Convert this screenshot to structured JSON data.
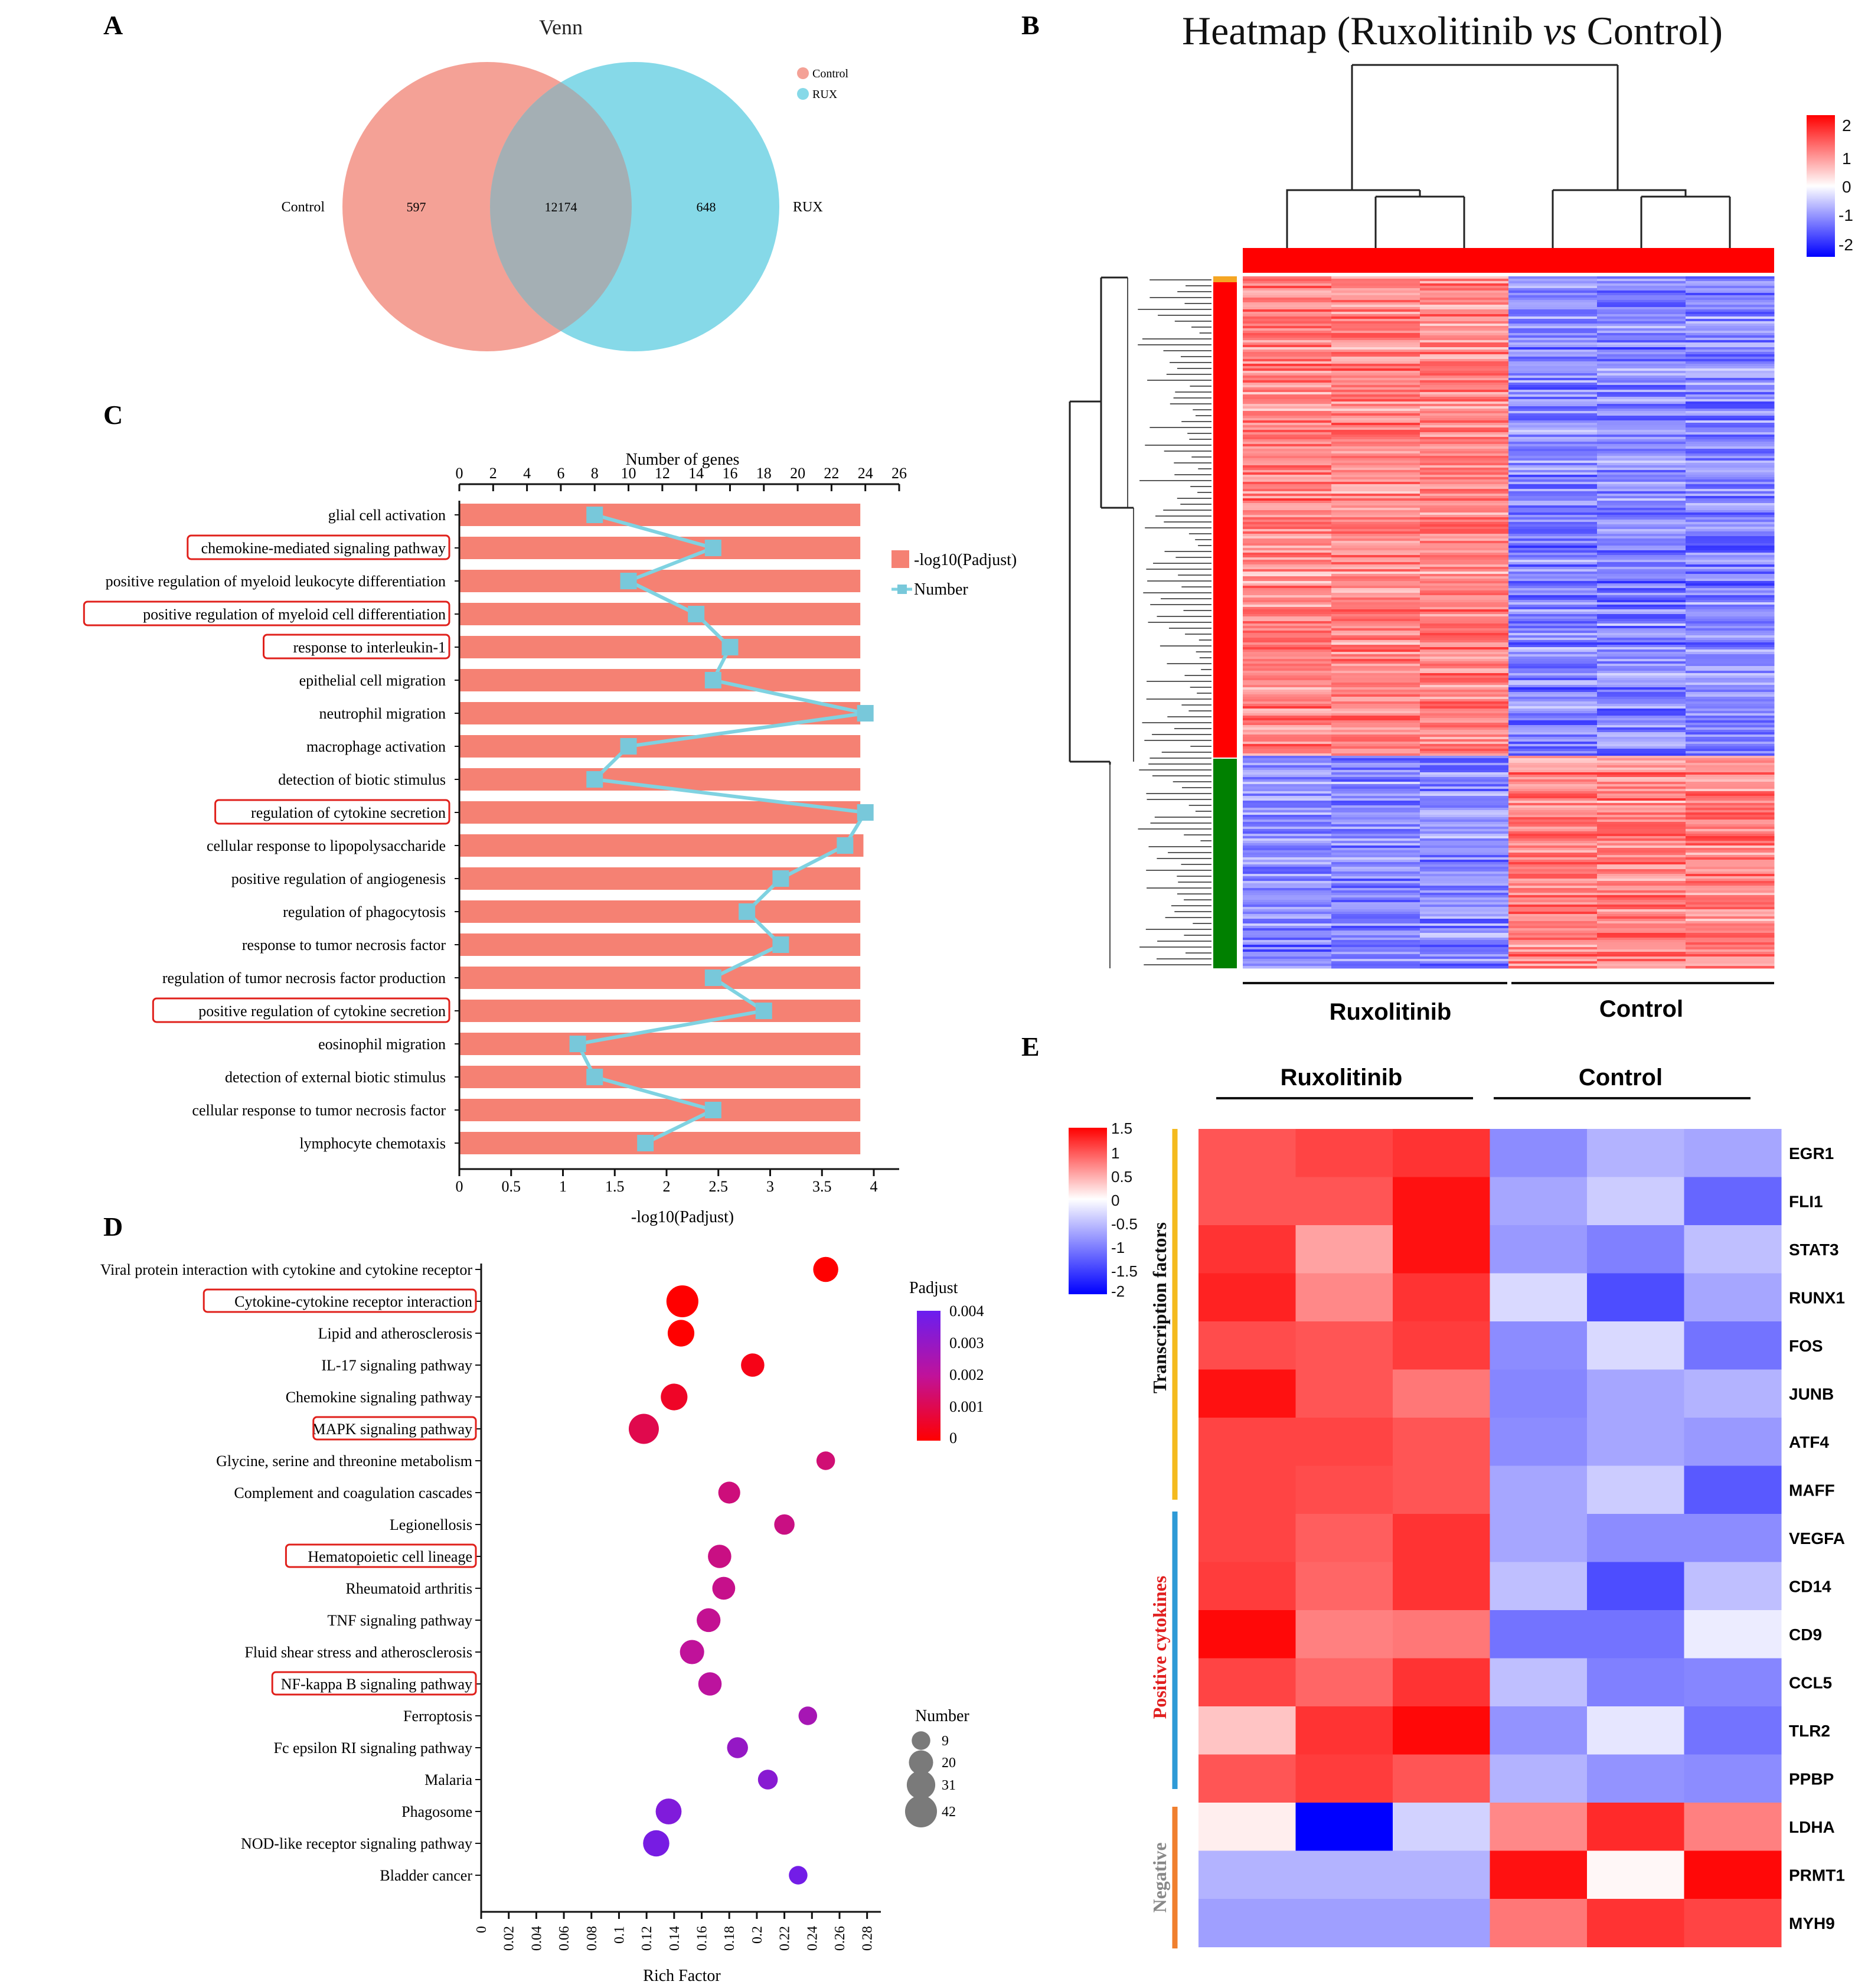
{
  "panel_labels": {
    "a": "A",
    "b": "B",
    "c": "C",
    "d": "D",
    "e": "E"
  },
  "colors": {
    "control": "#F4A196",
    "rux": "#86D9E8",
    "overlap": "#A4AFB4",
    "bar": "#F58173",
    "line": "#7FD2E1",
    "marker": "#78C8DA",
    "highlight": "#E0201B",
    "heat_high": "#FF0000",
    "heat_mid": "#FFFFFF",
    "heat_low": "#0000FF",
    "cluster_up": "#FF0000",
    "cluster_down": "#008000",
    "tf_bracket": "#F4BA1E",
    "pos_bracket": "#2E9AD6",
    "neg_bracket": "#F07F2E",
    "pos_label": "#E01E1E",
    "neg_label": "#888888"
  },
  "chart_data": [
    {
      "id": "venn",
      "type": "venn",
      "title": "Venn",
      "sets": [
        {
          "name": "Control",
          "label": "Control",
          "unique": 597
        },
        {
          "name": "RUX",
          "label": "RUX",
          "unique": 648
        }
      ],
      "intersection": 12174,
      "legend": [
        "Control",
        "RUX"
      ]
    },
    {
      "id": "heatmap_de",
      "type": "heatmap",
      "title_prefix": "Heatmap (Ruxolitinib ",
      "title_vs": "vs",
      "title_suffix": " Control)",
      "groups": [
        "Ruxolitinib",
        "Control"
      ],
      "samples_per_group": 3,
      "clusters": [
        {
          "name": "up in Ruxolitinib",
          "color": "#FF0000",
          "share": 0.69
        },
        {
          "name": "down in Ruxolitinib",
          "color": "#008000",
          "share": 0.31
        }
      ],
      "colorbar_ticks": [
        "2",
        "1",
        "0",
        "-1",
        "-2"
      ],
      "colorbar_range": [
        -2,
        2
      ]
    },
    {
      "id": "go_enrichment",
      "type": "bar",
      "top_axis_label": "Number of genes",
      "top_axis_ticks": [
        "0",
        "2",
        "4",
        "6",
        "8",
        "10",
        "12",
        "14",
        "16",
        "18",
        "20",
        "22",
        "24",
        "26"
      ],
      "top_axis_range": [
        0,
        26
      ],
      "bottom_axis_label": "-log10(Padjust)",
      "bottom_axis_ticks": [
        "0",
        "0.5",
        "1",
        "1.5",
        "2",
        "2.5",
        "3",
        "3.5",
        "4"
      ],
      "bottom_axis_range": [
        0,
        4
      ],
      "legend": [
        "-log10(Padjust)",
        "Number"
      ],
      "terms": [
        {
          "name": "glial cell activation",
          "padj": 3.87,
          "number": 8,
          "highlight": false
        },
        {
          "name": "chemokine-mediated signaling pathway",
          "padj": 3.87,
          "number": 15,
          "highlight": true
        },
        {
          "name": "positive regulation of myeloid leukocyte differentiation",
          "padj": 3.87,
          "number": 10,
          "highlight": false
        },
        {
          "name": "positive regulation of myeloid cell differentiation",
          "padj": 3.87,
          "number": 14,
          "highlight": true
        },
        {
          "name": "response to interleukin-1",
          "padj": 3.87,
          "number": 16,
          "highlight": true
        },
        {
          "name": "epithelial cell migration",
          "padj": 3.87,
          "number": 15,
          "highlight": false
        },
        {
          "name": "neutrophil migration",
          "padj": 3.87,
          "number": 24,
          "highlight": false
        },
        {
          "name": "macrophage activation",
          "padj": 3.87,
          "number": 10,
          "highlight": false
        },
        {
          "name": "detection of biotic stimulus",
          "padj": 3.87,
          "number": 8,
          "highlight": false
        },
        {
          "name": "regulation of cytokine secretion",
          "padj": 3.87,
          "number": 24,
          "highlight": true
        },
        {
          "name": "cellular response to lipopolysaccharide",
          "padj": 3.9,
          "number": 22.8,
          "highlight": false
        },
        {
          "name": "positive regulation of angiogenesis",
          "padj": 3.87,
          "number": 19,
          "highlight": false
        },
        {
          "name": "regulation of phagocytosis",
          "padj": 3.87,
          "number": 17,
          "highlight": false
        },
        {
          "name": "response to tumor necrosis factor",
          "padj": 3.87,
          "number": 19,
          "highlight": false
        },
        {
          "name": "regulation of tumor necrosis factor production",
          "padj": 3.87,
          "number": 15,
          "highlight": false
        },
        {
          "name": "positive regulation of cytokine secretion",
          "padj": 3.87,
          "number": 18,
          "highlight": true
        },
        {
          "name": "eosinophil migration",
          "padj": 3.87,
          "number": 7,
          "highlight": false
        },
        {
          "name": "detection of external biotic stimulus",
          "padj": 3.87,
          "number": 8,
          "highlight": false
        },
        {
          "name": "cellular response to tumor necrosis factor",
          "padj": 3.87,
          "number": 15,
          "highlight": false
        },
        {
          "name": "lymphocyte chemotaxis",
          "padj": 3.87,
          "number": 11,
          "highlight": false
        }
      ]
    },
    {
      "id": "kegg_enrichment",
      "type": "scatter",
      "xlabel": "Rich Factor",
      "x_ticks": [
        "0",
        "0.02",
        "0.04",
        "0.06",
        "0.08",
        "0.1",
        "0.12",
        "0.14",
        "0.16",
        "0.18",
        "0.2",
        "0.22",
        "0.24",
        "0.26",
        "0.28"
      ],
      "xlim": [
        0,
        0.29
      ],
      "color_legend_title": "Padjust",
      "color_ticks": [
        "0.004",
        "0.003",
        "0.002",
        "0.001",
        "0"
      ],
      "color_range": [
        0,
        0.004
      ],
      "size_legend_title": "Number",
      "size_ticks": [
        "9",
        "20",
        "31",
        "42"
      ],
      "pathways": [
        {
          "name": "Viral protein interaction with cytokine and cytokine receptor",
          "rich": 0.25,
          "number": 22,
          "padj": 0.0,
          "highlight": false
        },
        {
          "name": "Cytokine-cytokine receptor interaction",
          "rich": 0.146,
          "number": 42,
          "padj": 0.0,
          "highlight": true
        },
        {
          "name": "Lipid and atherosclerosis",
          "rich": 0.145,
          "number": 26,
          "padj": 0.0,
          "highlight": false
        },
        {
          "name": "IL-17 signaling pathway",
          "rich": 0.197,
          "number": 18,
          "padj": 0.0003,
          "highlight": false
        },
        {
          "name": "Chemokine signaling pathway",
          "rich": 0.14,
          "number": 26,
          "padj": 0.0005,
          "highlight": false
        },
        {
          "name": "MAPK signaling pathway",
          "rich": 0.118,
          "number": 36,
          "padj": 0.001,
          "highlight": true
        },
        {
          "name": "Glycine, serine and threonine metabolism",
          "rich": 0.25,
          "number": 9,
          "padj": 0.0015,
          "highlight": false
        },
        {
          "name": "Complement and coagulation cascades",
          "rich": 0.18,
          "number": 15,
          "padj": 0.0016,
          "highlight": false
        },
        {
          "name": "Legionellosis",
          "rich": 0.22,
          "number": 12,
          "padj": 0.0017,
          "highlight": false
        },
        {
          "name": "Hematopoietic cell lineage",
          "rich": 0.173,
          "number": 18,
          "padj": 0.0017,
          "highlight": true
        },
        {
          "name": "Rheumatoid arthritis",
          "rich": 0.176,
          "number": 17,
          "padj": 0.0018,
          "highlight": false
        },
        {
          "name": "TNF signaling pathway",
          "rich": 0.165,
          "number": 19,
          "padj": 0.0019,
          "highlight": false
        },
        {
          "name": "Fluid shear stress and atherosclerosis",
          "rich": 0.153,
          "number": 20,
          "padj": 0.002,
          "highlight": false
        },
        {
          "name": "NF-kappa B signaling pathway",
          "rich": 0.166,
          "number": 18,
          "padj": 0.0021,
          "highlight": true
        },
        {
          "name": "Ferroptosis",
          "rich": 0.237,
          "number": 9,
          "padj": 0.0026,
          "highlight": false
        },
        {
          "name": "Fc epsilon RI signaling pathway",
          "rich": 0.186,
          "number": 13,
          "padj": 0.003,
          "highlight": false
        },
        {
          "name": "Malaria",
          "rich": 0.208,
          "number": 11,
          "padj": 0.0033,
          "highlight": false
        },
        {
          "name": "Phagosome",
          "rich": 0.136,
          "number": 24,
          "padj": 0.0035,
          "highlight": false
        },
        {
          "name": "NOD-like receptor signaling pathway",
          "rich": 0.127,
          "number": 25,
          "padj": 0.0037,
          "highlight": false
        },
        {
          "name": "Bladder cancer",
          "rich": 0.23,
          "number": 9,
          "padj": 0.0038,
          "highlight": false
        }
      ]
    },
    {
      "id": "gene_heatmap",
      "type": "heatmap",
      "columns": [
        "Ruxolitinib",
        "Control"
      ],
      "samples_per_group": 3,
      "colorbar_ticks": [
        "1.5",
        "1",
        "0.5",
        "0",
        "-0.5",
        "-1",
        "-1.5",
        "-2"
      ],
      "colorbar_range": [
        -2,
        1.5
      ],
      "row_groups": [
        {
          "name": "Transcription factors",
          "start": 0,
          "end": 7
        },
        {
          "name": "Positive cytokines",
          "start": 8,
          "end": 13
        },
        {
          "name": "Negative",
          "start": 14,
          "end": 16
        }
      ],
      "genes": [
        "EGR1",
        "FLI1",
        "STAT3",
        "RUNX1",
        "FOS",
        "JUNB",
        "ATF4",
        "MAFF",
        "VEGFA",
        "CD14",
        "CD9",
        "CCL5",
        "TLR2",
        "PPBP",
        "LDHA",
        "PRMT1",
        "MYH9"
      ],
      "values": [
        [
          1.0,
          1.1,
          1.2,
          -0.9,
          -0.6,
          -0.7
        ],
        [
          1.0,
          1.0,
          1.4,
          -0.7,
          -0.4,
          -1.2
        ],
        [
          1.2,
          0.55,
          1.4,
          -0.8,
          -1.0,
          -0.5
        ],
        [
          1.3,
          0.7,
          1.2,
          -0.3,
          -1.4,
          -0.7
        ],
        [
          1.05,
          1.0,
          1.15,
          -0.9,
          -0.3,
          -1.1
        ],
        [
          1.4,
          1.0,
          0.8,
          -0.95,
          -0.7,
          -0.6
        ],
        [
          1.1,
          1.1,
          1.0,
          -0.9,
          -0.7,
          -0.8
        ],
        [
          1.1,
          1.05,
          1.0,
          -0.7,
          -0.4,
          -1.3
        ],
        [
          1.1,
          0.95,
          1.2,
          -0.7,
          -0.9,
          -0.9
        ],
        [
          1.15,
          0.9,
          1.2,
          -0.5,
          -1.4,
          -0.5
        ],
        [
          1.45,
          0.75,
          0.8,
          -1.1,
          -1.1,
          -0.15
        ],
        [
          1.1,
          0.9,
          1.2,
          -0.5,
          -1.0,
          -0.95
        ],
        [
          0.35,
          1.2,
          1.45,
          -0.85,
          -0.2,
          -1.1
        ],
        [
          1.0,
          1.15,
          1.0,
          -0.6,
          -0.85,
          -0.9
        ],
        [
          0.1,
          -2.0,
          -0.35,
          0.7,
          1.25,
          0.75
        ],
        [
          -0.6,
          -0.6,
          -0.6,
          1.4,
          0.05,
          1.45
        ],
        [
          -0.75,
          -0.75,
          -0.75,
          0.8,
          1.2,
          1.1
        ]
      ]
    }
  ]
}
